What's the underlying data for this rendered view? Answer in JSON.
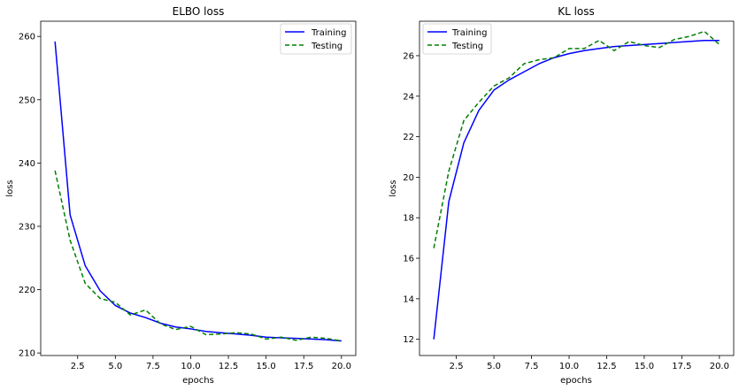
{
  "chart_data": [
    {
      "type": "line",
      "title": "ELBO loss",
      "xlabel": "epochs",
      "ylabel": "loss",
      "xlim": [
        0.05,
        20.95
      ],
      "ylim": [
        209.6,
        262.4
      ],
      "xticks": [
        2.5,
        5.0,
        7.5,
        10.0,
        12.5,
        15.0,
        17.5,
        20.0
      ],
      "xtick_labels": [
        "2.5",
        "5.0",
        "7.5",
        "10.0",
        "12.5",
        "15.0",
        "17.5",
        "20.0"
      ],
      "yticks": [
        210,
        220,
        230,
        240,
        250,
        260
      ],
      "ytick_labels": [
        "210",
        "220",
        "230",
        "240",
        "250",
        "260"
      ],
      "grid": false,
      "legend_position": "top-right",
      "x": [
        1,
        2,
        3,
        4,
        5,
        6,
        7,
        8,
        9,
        10,
        11,
        12,
        13,
        14,
        15,
        16,
        17,
        18,
        19,
        20
      ],
      "series": [
        {
          "name": "Training",
          "color": "#0000ff",
          "style": "solid",
          "values": [
            259.2,
            231.8,
            223.8,
            219.8,
            217.5,
            216.3,
            215.6,
            214.7,
            214.1,
            213.8,
            213.4,
            213.2,
            213.0,
            212.8,
            212.5,
            212.4,
            212.3,
            212.2,
            212.1,
            211.9
          ]
        },
        {
          "name": "Testing",
          "color": "#008000",
          "style": "dashed",
          "values": [
            238.8,
            227.8,
            221.0,
            218.6,
            218.0,
            216.0,
            216.8,
            214.6,
            213.7,
            214.2,
            212.9,
            213.0,
            213.2,
            213.0,
            212.2,
            212.5,
            212.0,
            212.5,
            212.3,
            211.9
          ]
        }
      ]
    },
    {
      "type": "line",
      "title": "KL loss",
      "xlabel": "epochs",
      "ylabel": "loss",
      "xlim": [
        0.05,
        20.95
      ],
      "ylim": [
        11.2,
        27.7
      ],
      "xticks": [
        2.5,
        5.0,
        7.5,
        10.0,
        12.5,
        15.0,
        17.5,
        20.0
      ],
      "xtick_labels": [
        "2.5",
        "5.0",
        "7.5",
        "10.0",
        "12.5",
        "15.0",
        "17.5",
        "20.0"
      ],
      "yticks": [
        12,
        14,
        16,
        18,
        20,
        22,
        24,
        26
      ],
      "ytick_labels": [
        "12",
        "14",
        "16",
        "18",
        "20",
        "22",
        "24",
        "26"
      ],
      "grid": false,
      "legend_position": "top-left",
      "x": [
        1,
        2,
        3,
        4,
        5,
        6,
        7,
        8,
        9,
        10,
        11,
        12,
        13,
        14,
        15,
        16,
        17,
        18,
        19,
        20
      ],
      "series": [
        {
          "name": "Training",
          "color": "#0000ff",
          "style": "solid",
          "values": [
            12.0,
            18.8,
            21.7,
            23.3,
            24.3,
            24.8,
            25.2,
            25.6,
            25.9,
            26.1,
            26.25,
            26.35,
            26.45,
            26.5,
            26.55,
            26.6,
            26.65,
            26.7,
            26.75,
            26.75
          ]
        },
        {
          "name": "Testing",
          "color": "#008000",
          "style": "dashed",
          "values": [
            16.5,
            20.3,
            22.8,
            23.7,
            24.5,
            24.9,
            25.6,
            25.8,
            25.9,
            26.35,
            26.35,
            26.75,
            26.25,
            26.7,
            26.5,
            26.4,
            26.8,
            26.95,
            27.2,
            26.55
          ]
        }
      ]
    }
  ]
}
